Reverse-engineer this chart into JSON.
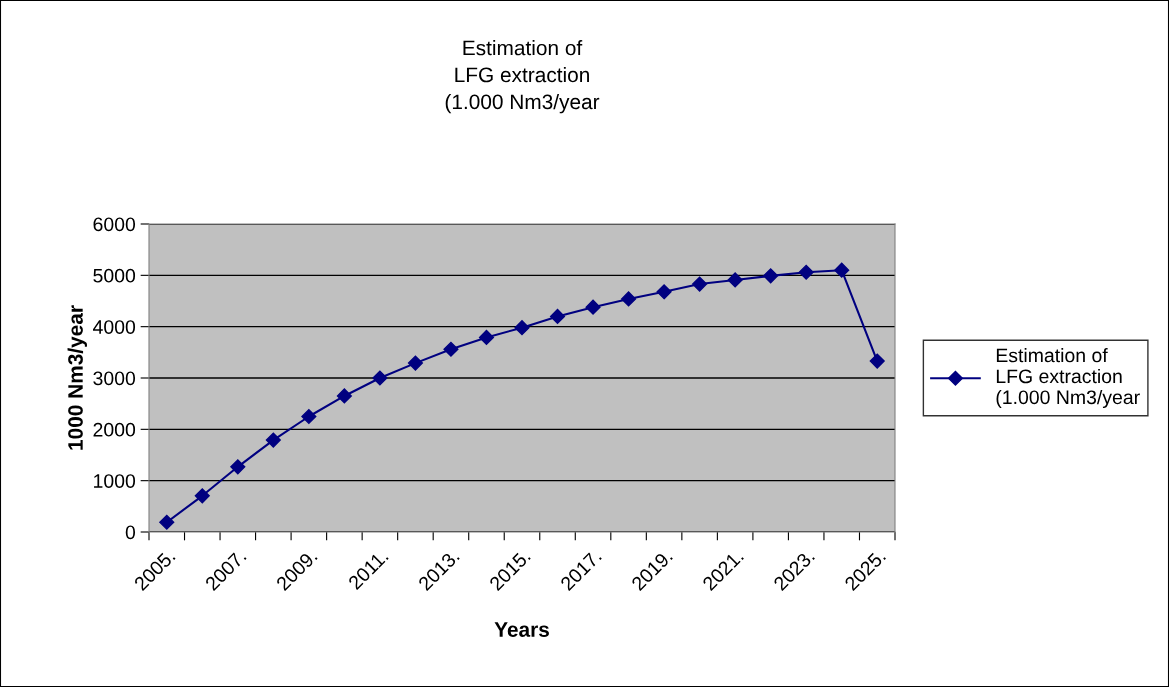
{
  "chart_data": {
    "type": "line",
    "title": "Estimation of\nLFG extraction\n(1.000 Nm3/year",
    "xlabel": "Years",
    "ylabel": "1000 Nm3/year",
    "categories": [
      "2005.",
      null,
      "2007.",
      null,
      "2009.",
      null,
      "2011.",
      null,
      "2013.",
      null,
      "2015.",
      null,
      "2017.",
      null,
      "2019.",
      null,
      "2021.",
      null,
      "2023.",
      null,
      "2025."
    ],
    "series": [
      {
        "name": "Estimation of\nLFG extraction\n(1.000 Nm3/year",
        "color": "#000080",
        "values": [
          190,
          705,
          1270,
          1790,
          2250,
          2650,
          3000,
          3290,
          3560,
          3790,
          3980,
          4200,
          4380,
          4540,
          4680,
          4830,
          4910,
          4990,
          5060,
          5100,
          3330
        ]
      }
    ],
    "ylim": [
      0,
      6000
    ],
    "yticks": [
      0,
      1000,
      2000,
      3000,
      4000,
      5000,
      6000
    ],
    "grid": "y",
    "legend": "right",
    "marker": "diamond",
    "line_style": "solid"
  }
}
